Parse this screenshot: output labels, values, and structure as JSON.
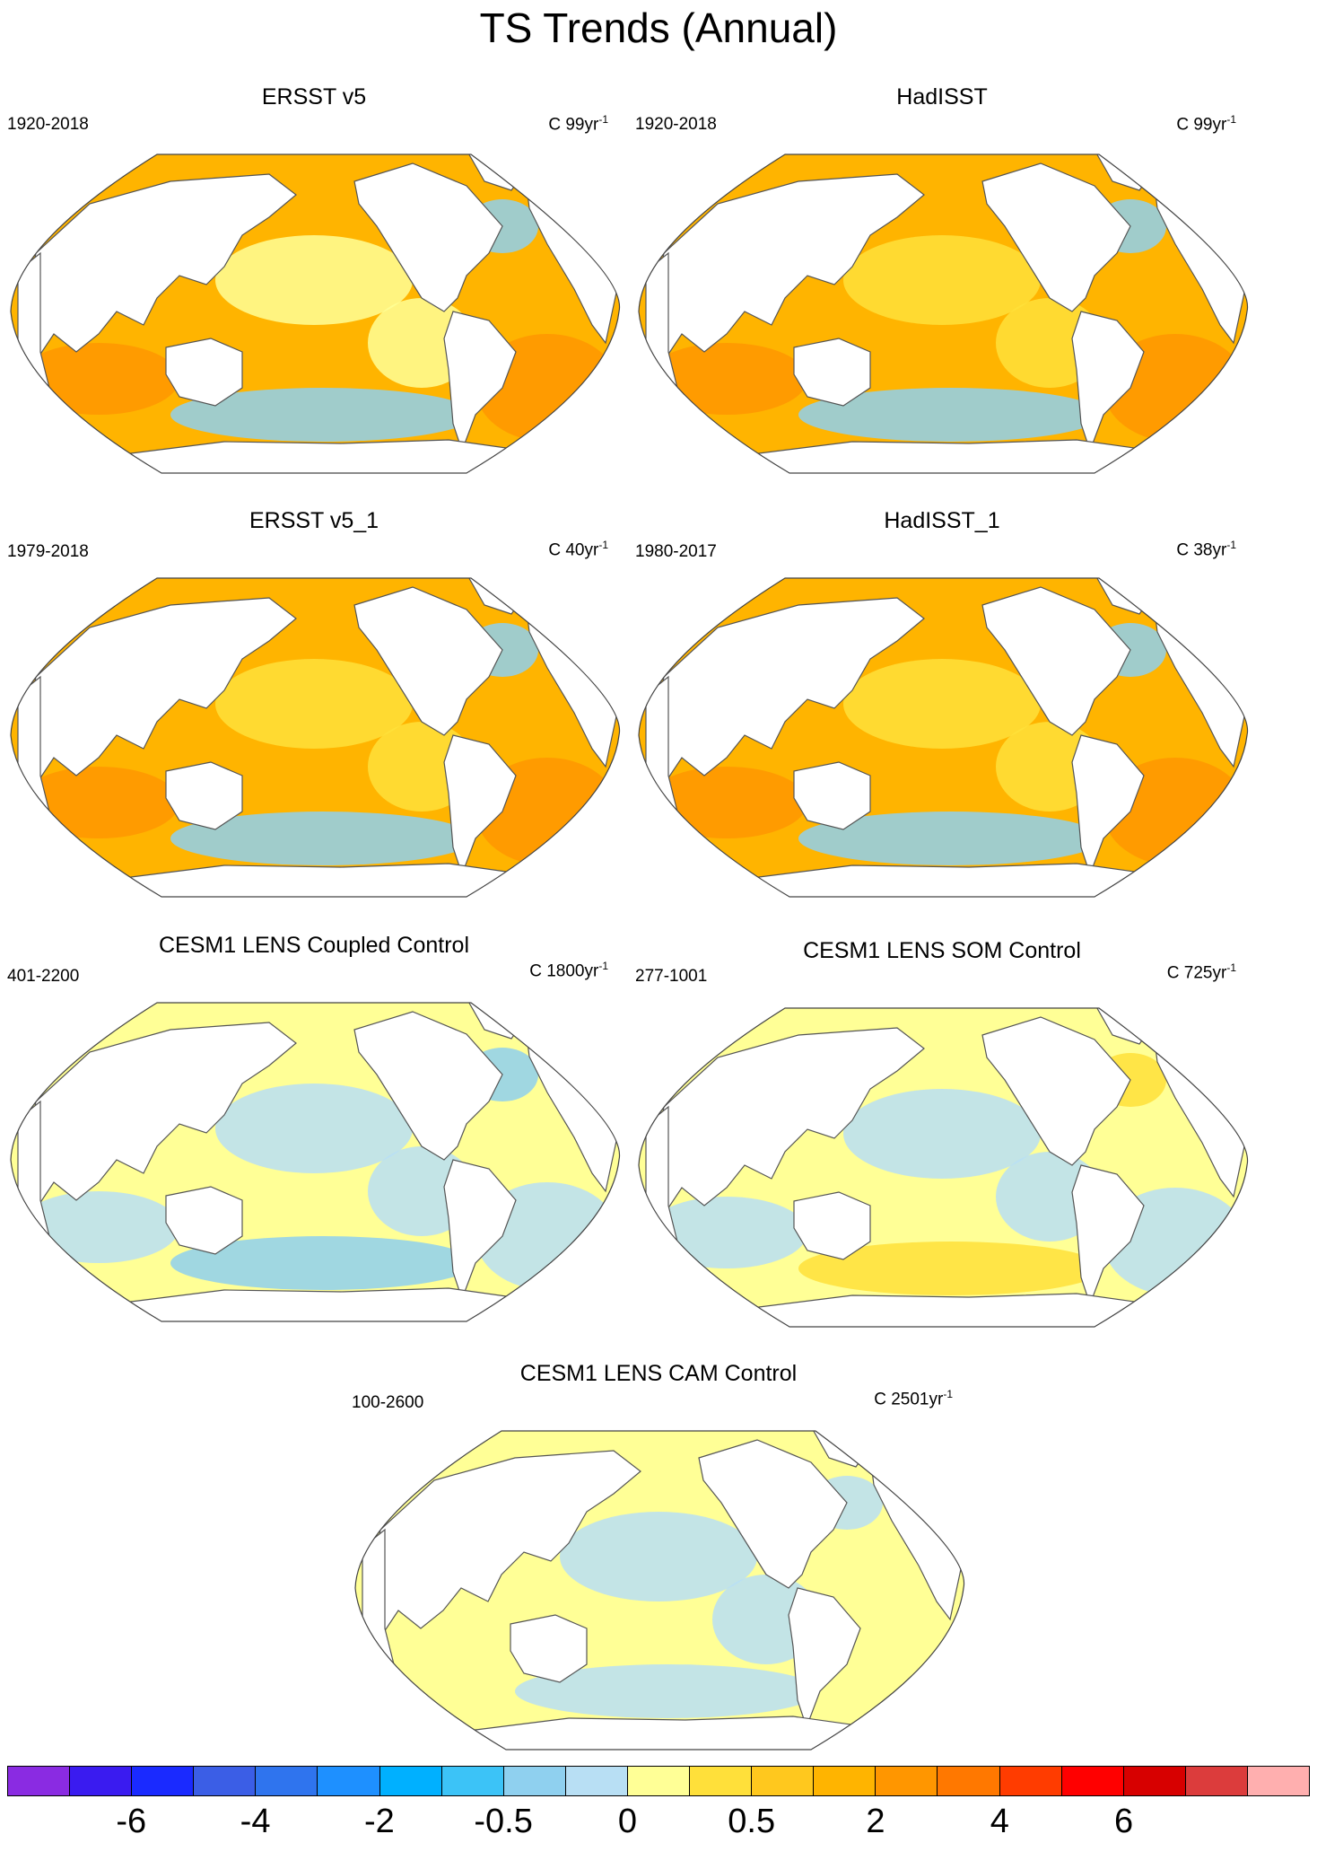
{
  "title": "TS Trends (Annual)",
  "panels": [
    {
      "title": "ERSST v5",
      "period": "1920-2018",
      "units_prefix": "C 99yr",
      "units_exp": "-1",
      "ocean": "#ffb400",
      "shade": "#ff9600",
      "cool": "#ffff96",
      "cold": "#8fd0ef"
    },
    {
      "title": "HadISST",
      "period": "1920-2018",
      "units_prefix": "C 99yr",
      "units_exp": "-1",
      "ocean": "#ffb400",
      "shade": "#ff9600",
      "cool": "#ffe03a",
      "cold": "#8fd0ef"
    },
    {
      "title": "ERSST v5_1",
      "period": "1979-2018",
      "units_prefix": "C 40yr",
      "units_exp": "-1",
      "ocean": "#ffb400",
      "shade": "#ff9600",
      "cool": "#ffe03a",
      "cold": "#8fd0ef"
    },
    {
      "title": "HadISST_1",
      "period": "1980-2017",
      "units_prefix": "C 38yr",
      "units_exp": "-1",
      "ocean": "#ffb400",
      "shade": "#ff9600",
      "cool": "#ffe03a",
      "cold": "#8fd0ef"
    },
    {
      "title": "CESM1 LENS Coupled Control",
      "period": "401-2200",
      "units_prefix": "C 1800yr",
      "units_exp": "-1",
      "ocean": "#ffff96",
      "shade": "#b8dff4",
      "cool": "#b8dff4",
      "cold": "#8fd0ef"
    },
    {
      "title": "CESM1 LENS SOM Control",
      "period": "277-1001",
      "units_prefix": "C 725yr",
      "units_exp": "-1",
      "ocean": "#ffff96",
      "shade": "#b8dff4",
      "cool": "#b8dff4",
      "cold": "#ffe03a"
    },
    {
      "title": "CESM1 LENS CAM Control",
      "period": "100-2600",
      "units_prefix": "C 2501yr",
      "units_exp": "-1",
      "ocean": "#ffff96",
      "shade": "#ffff96",
      "cool": "#b8dff4",
      "cold": "#b8dff4"
    }
  ],
  "colorbar": {
    "colors": [
      "#8a2be2",
      "#3a1bf0",
      "#1a2aff",
      "#3b5ee6",
      "#2f74ee",
      "#1e90ff",
      "#00b0ff",
      "#3cc3f7",
      "#8fd0ef",
      "#b8dff4",
      "#ffff96",
      "#ffe03a",
      "#ffc81e",
      "#ffb400",
      "#ff9600",
      "#ff7800",
      "#ff3c00",
      "#ff0000",
      "#d70000",
      "#dc3c3c",
      "#ffafaf"
    ],
    "labels": [
      "-6",
      "-4",
      "-2",
      "-0.5",
      "0",
      "0.5",
      "2",
      "4",
      "6"
    ]
  }
}
